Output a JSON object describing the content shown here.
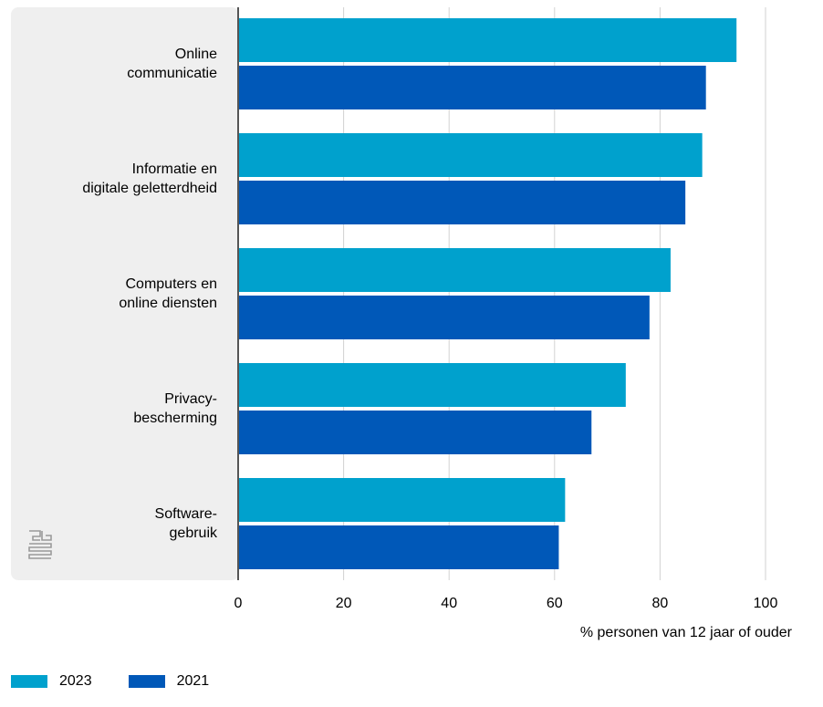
{
  "colors": {
    "series_2023": "#00a1cd",
    "series_2021": "#0058b8",
    "panel_bg": "#efefef",
    "grid": "#d2d2d2",
    "axis": "#555555",
    "logo": "#9a9a9a"
  },
  "icons": {
    "logo": "cbs-logo-icon"
  },
  "chart_data": {
    "type": "bar",
    "orientation": "horizontal",
    "categories": [
      [
        "Online",
        "communicatie"
      ],
      [
        "Informatie en",
        "digitale geletterdheid"
      ],
      [
        "Computers en",
        "online diensten"
      ],
      [
        "Privacy-",
        "bescherming"
      ],
      [
        "Software-",
        "gebruik"
      ]
    ],
    "series": [
      {
        "name": "2023",
        "values": [
          94.5,
          88,
          82,
          73.5,
          62
        ]
      },
      {
        "name": "2021",
        "values": [
          88.7,
          84.8,
          78,
          67,
          60.8
        ]
      }
    ],
    "xlabel": "% personen van 12 jaar of ouder",
    "xlim": [
      0,
      100
    ],
    "xticks": [
      "0",
      "20",
      "40",
      "60",
      "80",
      "100"
    ],
    "grid": true,
    "legend_position": "bottom-left"
  }
}
